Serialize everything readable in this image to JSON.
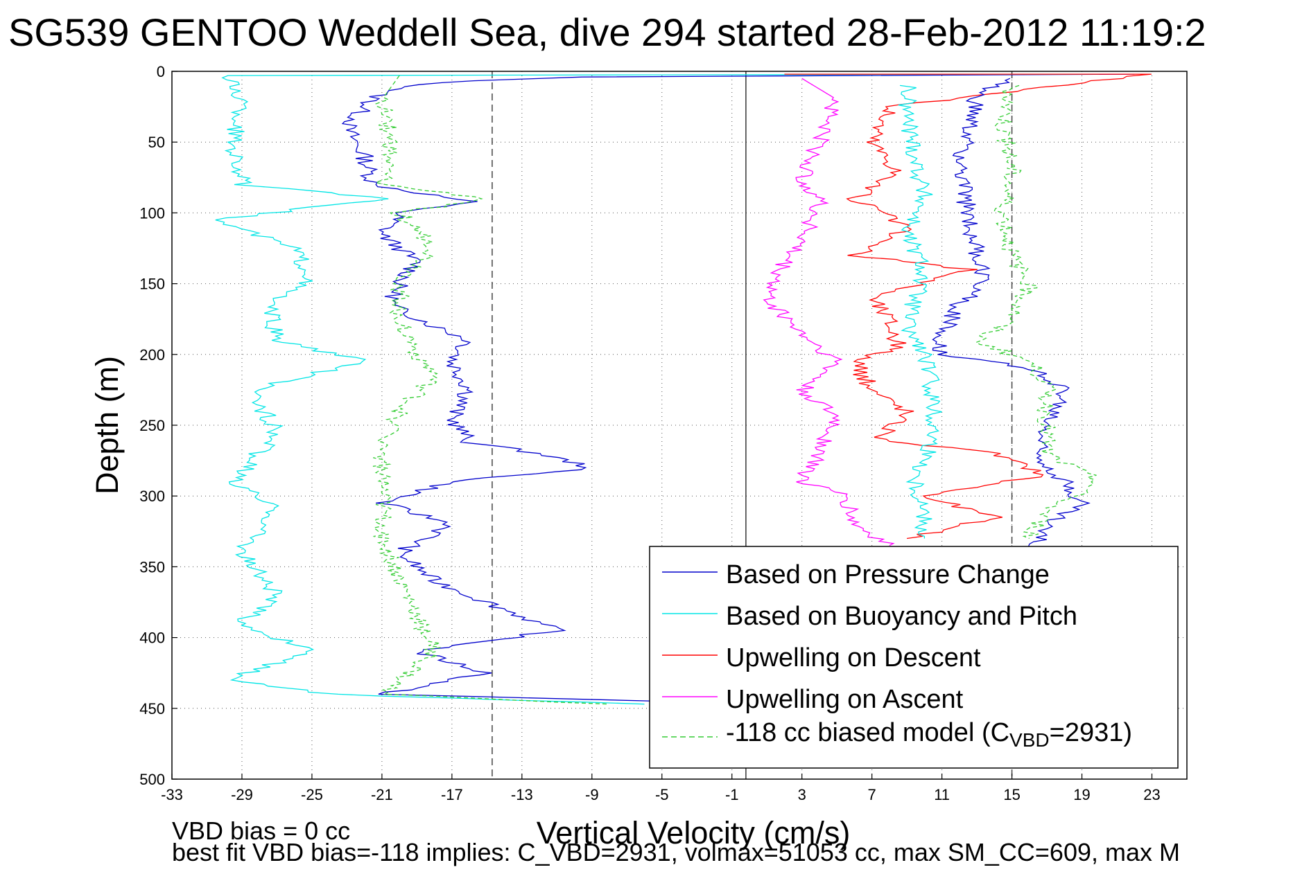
{
  "chart_data": {
    "type": "line",
    "title": "SG539 GENTOO Weddell Sea, dive 294 started 28-Feb-2012 11:19:2",
    "xlabel": "Vertical Velocity (cm/s)",
    "ylabel": "Depth (m)",
    "xlim": [
      -33,
      25
    ],
    "ylim": [
      500,
      0
    ],
    "y_reversed": true,
    "grid": "dotted",
    "x_ticks": [
      "-33",
      "-29",
      "-25",
      "-21",
      "-17",
      "-13",
      "-9",
      "-5",
      "-1",
      "3",
      "7",
      "11",
      "15",
      "19",
      "23"
    ],
    "y_ticks": [
      "0",
      "50",
      "100",
      "150",
      "200",
      "250",
      "300",
      "350",
      "400",
      "450",
      "500"
    ],
    "reference_lines": {
      "solid_x": -0.2,
      "dashed_x": [
        -14.7,
        15
      ]
    },
    "legend_placement": "lower-right",
    "series": [
      {
        "name": "Based on Pressure Change",
        "color": "#0000cc",
        "style": "solid",
        "points": [
          [
            22,
            2
          ],
          [
            -10,
            4
          ],
          [
            -18,
            8
          ],
          [
            -21,
            15
          ],
          [
            -22,
            25
          ],
          [
            -23,
            40
          ],
          [
            -22,
            60
          ],
          [
            -21.5,
            80
          ],
          [
            -16,
            92
          ],
          [
            -20,
            100
          ],
          [
            -21,
            115
          ],
          [
            -19,
            135
          ],
          [
            -20,
            150
          ],
          [
            -20.5,
            165
          ],
          [
            -18,
            180
          ],
          [
            -16,
            190
          ],
          [
            -17,
            205
          ],
          [
            -16,
            225
          ],
          [
            -17,
            245
          ],
          [
            -16,
            262
          ],
          [
            -12,
            270
          ],
          [
            -9,
            280
          ],
          [
            -17,
            290
          ],
          [
            -21,
            305
          ],
          [
            -17,
            320
          ],
          [
            -20,
            340
          ],
          [
            -18,
            360
          ],
          [
            -15,
            375
          ],
          [
            -11,
            395
          ],
          [
            -19,
            410
          ],
          [
            -15,
            425
          ],
          [
            -21,
            440
          ],
          [
            -5,
            445
          ]
        ]
      },
      {
        "name": "Based on Buoyancy and Pitch",
        "color": "#00e5e5",
        "style": "solid",
        "points": [
          [
            20,
            2
          ],
          [
            -30,
            3
          ],
          [
            -29,
            20
          ],
          [
            -29.5,
            50
          ],
          [
            -29,
            80
          ],
          [
            -21,
            90
          ],
          [
            -30.5,
            105
          ],
          [
            -26,
            125
          ],
          [
            -25,
            145
          ],
          [
            -27.5,
            165
          ],
          [
            -27,
            190
          ],
          [
            -22,
            205
          ],
          [
            -28.5,
            225
          ],
          [
            -27,
            255
          ],
          [
            -29.5,
            290
          ],
          [
            -27,
            310
          ],
          [
            -29,
            340
          ],
          [
            -27,
            370
          ],
          [
            -29,
            390
          ],
          [
            -25,
            410
          ],
          [
            -30,
            430
          ],
          [
            -24,
            440
          ],
          [
            -6,
            447
          ]
        ]
      },
      {
        "name": "Upwelling on Descent",
        "color": "#ff0000",
        "style": "solid",
        "points": [
          [
            2,
            2
          ],
          [
            23,
            2
          ],
          [
            8,
            25
          ],
          [
            7,
            50
          ],
          [
            8.5,
            70
          ],
          [
            6,
            90
          ],
          [
            9,
            110
          ],
          [
            6,
            130
          ],
          [
            12.5,
            140
          ],
          [
            7,
            160
          ],
          [
            8,
            175
          ],
          [
            8.5,
            195
          ],
          [
            6,
            205
          ],
          [
            7,
            225
          ],
          [
            9,
            240
          ],
          [
            7.5,
            260
          ],
          [
            14,
            270
          ],
          [
            17,
            285
          ],
          [
            10,
            300
          ],
          [
            14,
            315
          ],
          [
            9,
            330
          ]
        ]
      },
      {
        "name": "Upwelling on Ascent",
        "color": "#ff00ff",
        "style": "solid",
        "points": [
          [
            3,
            5
          ],
          [
            5,
            20
          ],
          [
            4,
            50
          ],
          [
            3,
            75
          ],
          [
            4,
            90
          ],
          [
            3.5,
            110
          ],
          [
            2,
            135
          ],
          [
            1,
            160
          ],
          [
            3,
            185
          ],
          [
            5,
            205
          ],
          [
            3,
            225
          ],
          [
            5,
            245
          ],
          [
            4,
            270
          ],
          [
            3,
            290
          ],
          [
            5.5,
            300
          ],
          [
            6,
            320
          ],
          [
            8,
            335
          ]
        ]
      },
      {
        "name": "-118 cc biased model (C_VBD=2931)",
        "color": "#33cc33",
        "style": "dashed",
        "points": [
          [
            -20,
            3
          ],
          [
            -21,
            20
          ],
          [
            -20.5,
            50
          ],
          [
            -21,
            80
          ],
          [
            -15,
            90
          ],
          [
            -20,
            100
          ],
          [
            -18,
            125
          ],
          [
            -20,
            150
          ],
          [
            -20,
            175
          ],
          [
            -19,
            200
          ],
          [
            -18,
            215
          ],
          [
            -20,
            240
          ],
          [
            -21,
            270
          ],
          [
            -21,
            300
          ],
          [
            -21,
            330
          ],
          [
            -20,
            360
          ],
          [
            -19,
            385
          ],
          [
            -18,
            410
          ],
          [
            -21,
            440
          ],
          [
            -8,
            447
          ]
        ]
      },
      {
        "name": "",
        "color": "#0000cc",
        "style": "solid",
        "points": [
          [
            15,
            5
          ],
          [
            13,
            15
          ],
          [
            12.5,
            40
          ],
          [
            12,
            70
          ],
          [
            12.5,
            100
          ],
          [
            13,
            130
          ],
          [
            13.5,
            150
          ],
          [
            12,
            165
          ],
          [
            11,
            185
          ],
          [
            11,
            200
          ],
          [
            14,
            205
          ],
          [
            17,
            215
          ],
          [
            18,
            225
          ],
          [
            17,
            250
          ],
          [
            16.5,
            270
          ],
          [
            18,
            290
          ],
          [
            19,
            305
          ],
          [
            17,
            320
          ],
          [
            16,
            340
          ]
        ]
      },
      {
        "name": "",
        "color": "#00e5e5",
        "style": "solid",
        "points": [
          [
            9,
            10
          ],
          [
            9,
            30
          ],
          [
            9.5,
            60
          ],
          [
            10,
            90
          ],
          [
            9,
            115
          ],
          [
            10,
            140
          ],
          [
            9.5,
            160
          ],
          [
            9,
            180
          ],
          [
            10,
            200
          ],
          [
            10.5,
            230
          ],
          [
            10.5,
            260
          ],
          [
            9.5,
            290
          ],
          [
            10,
            310
          ],
          [
            10,
            330
          ]
        ]
      },
      {
        "name": "",
        "color": "#33cc33",
        "style": "dashed",
        "points": [
          [
            15,
            10
          ],
          [
            14.5,
            40
          ],
          [
            15,
            70
          ],
          [
            14.5,
            100
          ],
          [
            15,
            130
          ],
          [
            16,
            150
          ],
          [
            15,
            175
          ],
          [
            13,
            190
          ],
          [
            16,
            205
          ],
          [
            17,
            220
          ],
          [
            17,
            250
          ],
          [
            17,
            270
          ],
          [
            20,
            290
          ],
          [
            17,
            310
          ],
          [
            16,
            330
          ]
        ]
      }
    ],
    "annotations": [
      "VBD bias = 0 cc",
      "best fit VBD bias=-118 implies: C_VBD=2931, volmax=51053 cc, max SM_CC=609, max M"
    ]
  },
  "legend": {
    "entries": [
      {
        "label": "Based on Pressure Change",
        "color": "#0000cc",
        "style": "solid"
      },
      {
        "label": "Based on Buoyancy and Pitch",
        "color": "#00e5e5",
        "style": "solid"
      },
      {
        "label": "Upwelling on Descent",
        "color": "#ff0000",
        "style": "solid"
      },
      {
        "label": "Upwelling on Ascent",
        "color": "#ff00ff",
        "style": "solid"
      },
      {
        "label_prefix": "-118 cc biased model (C",
        "label_sub": "VBD",
        "label_suffix": "=2931)",
        "color": "#33cc33",
        "style": "dashed"
      }
    ]
  }
}
